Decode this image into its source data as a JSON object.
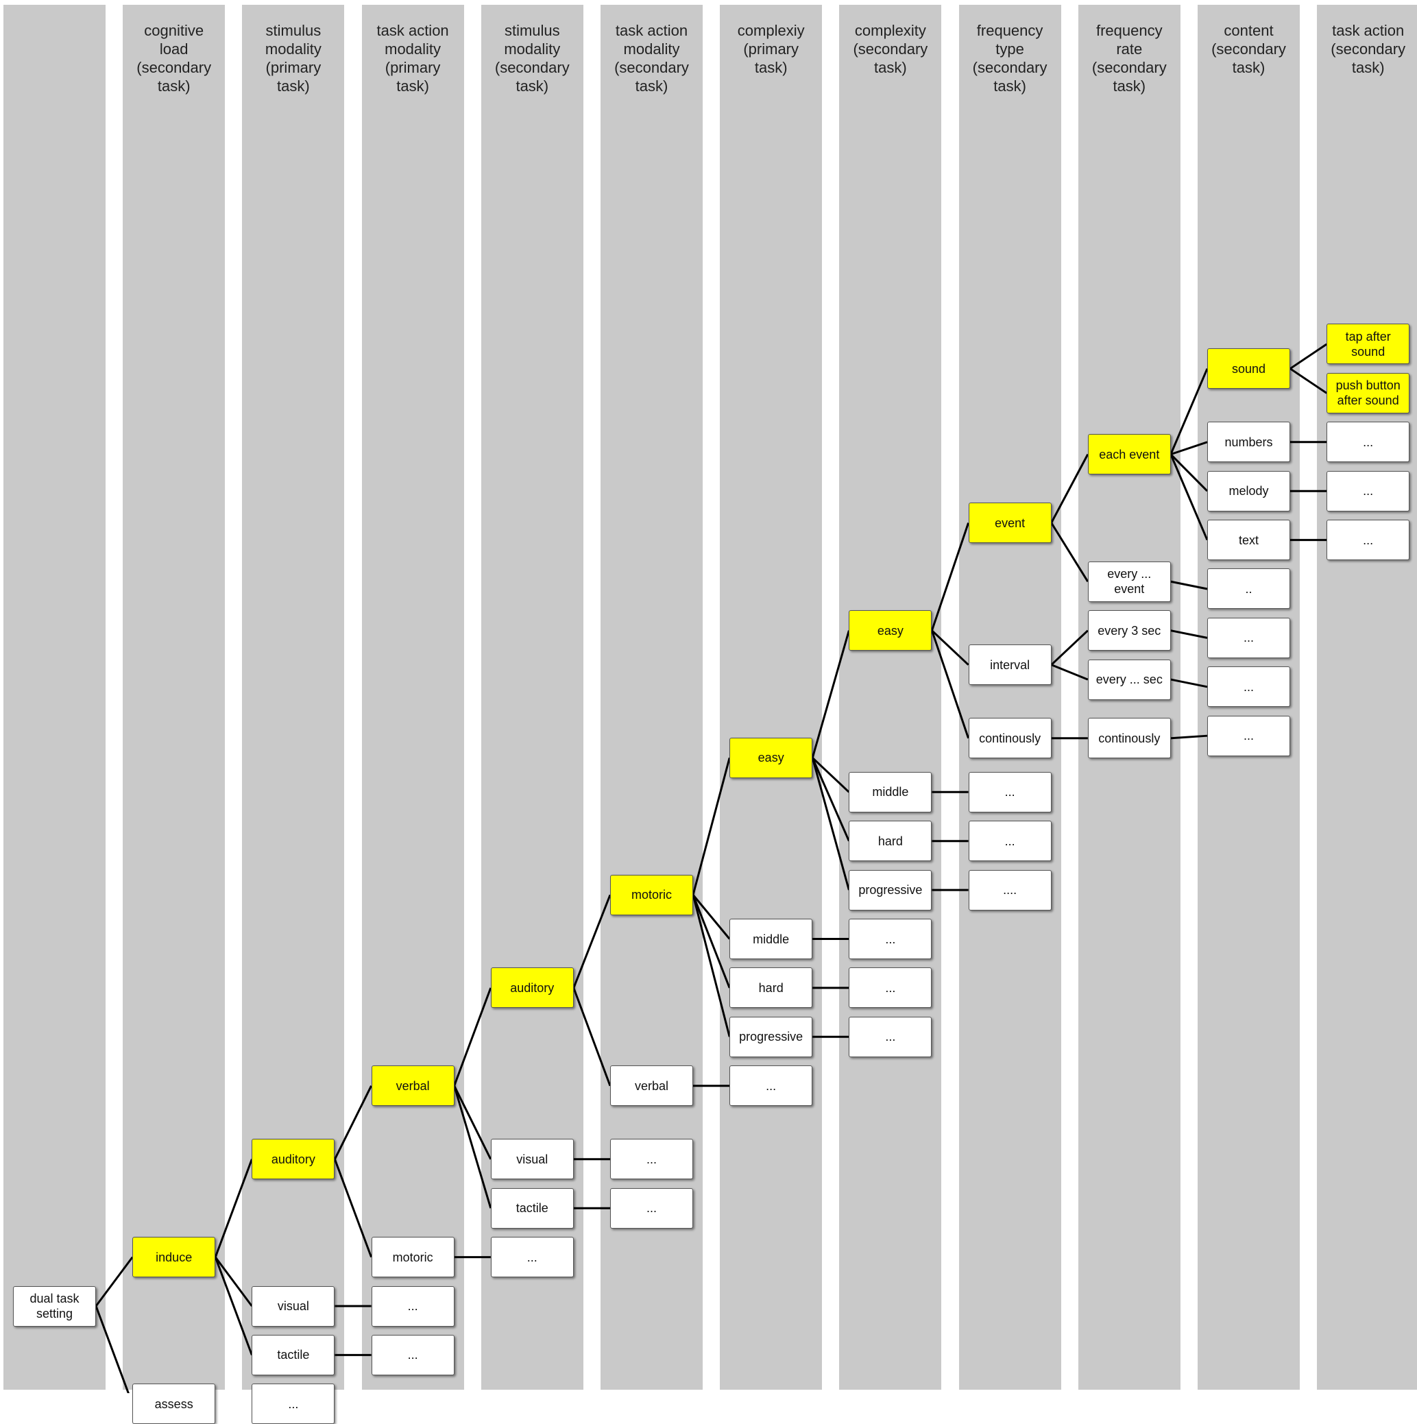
{
  "columns": [
    {
      "id": "c0",
      "label": ""
    },
    {
      "id": "c1",
      "label": "cognitive\nload\n(secondary\ntask)"
    },
    {
      "id": "c2",
      "label": "stimulus\nmodality\n(primary\ntask)"
    },
    {
      "id": "c3",
      "label": "task action\nmodality\n(primary\ntask)"
    },
    {
      "id": "c4",
      "label": "stimulus\nmodality\n(secondary\ntask)"
    },
    {
      "id": "c5",
      "label": "task action\nmodality\n(secondary\ntask)"
    },
    {
      "id": "c6",
      "label": "complexiy\n(primary\ntask)"
    },
    {
      "id": "c7",
      "label": "complexity\n(secondary\ntask)"
    },
    {
      "id": "c8",
      "label": "frequency\ntype\n(secondary\ntask)"
    },
    {
      "id": "c9",
      "label": "frequency\nrate\n(secondary\ntask)"
    },
    {
      "id": "c10",
      "label": "content\n(secondary\ntask)"
    },
    {
      "id": "c11",
      "label": "task action\n(secondary\ntask)"
    }
  ],
  "nodes": [
    {
      "id": "root",
      "col": 0,
      "row": 0,
      "label": "dual task\nsetting",
      "highlight": false
    },
    {
      "id": "induce",
      "col": 1,
      "row": 1,
      "label": "induce",
      "highlight": true
    },
    {
      "id": "assess",
      "col": 1,
      "row": -2,
      "label": "assess",
      "highlight": false
    },
    {
      "id": "aud1",
      "col": 2,
      "row": 3,
      "label": "auditory",
      "highlight": true
    },
    {
      "id": "vis1",
      "col": 2,
      "row": 0,
      "label": "visual",
      "highlight": false
    },
    {
      "id": "tac1",
      "col": 2,
      "row": -1,
      "label": "tactile",
      "highlight": false
    },
    {
      "id": "dots2a",
      "col": 2,
      "row": -2,
      "label": "...",
      "highlight": false
    },
    {
      "id": "verbal1",
      "col": 3,
      "row": 4.5,
      "label": "verbal",
      "highlight": true
    },
    {
      "id": "motoric1",
      "col": 3,
      "row": 1,
      "label": "motoric",
      "highlight": false
    },
    {
      "id": "dots3a",
      "col": 3,
      "row": 0,
      "label": "...",
      "highlight": false
    },
    {
      "id": "dots3b",
      "col": 3,
      "row": -1,
      "label": "...",
      "highlight": false
    },
    {
      "id": "aud2",
      "col": 4,
      "row": 6.5,
      "label": "auditory",
      "highlight": true
    },
    {
      "id": "vis2",
      "col": 4,
      "row": 3,
      "label": "visual",
      "highlight": false
    },
    {
      "id": "tac2",
      "col": 4,
      "row": 2,
      "label": "tactile",
      "highlight": false
    },
    {
      "id": "dots4a",
      "col": 4,
      "row": 1,
      "label": "...",
      "highlight": false
    },
    {
      "id": "motoric2",
      "col": 5,
      "row": 8.4,
      "label": "motoric",
      "highlight": true
    },
    {
      "id": "verbal2",
      "col": 5,
      "row": 4.5,
      "label": "verbal",
      "highlight": false
    },
    {
      "id": "dots5a",
      "col": 5,
      "row": 3,
      "label": "...",
      "highlight": false
    },
    {
      "id": "dots5b",
      "col": 5,
      "row": 2,
      "label": "...",
      "highlight": false
    },
    {
      "id": "easy1",
      "col": 6,
      "row": 11.2,
      "label": "easy",
      "highlight": true
    },
    {
      "id": "middle1",
      "col": 6,
      "row": 7.5,
      "label": "middle",
      "highlight": false
    },
    {
      "id": "hard1",
      "col": 6,
      "row": 6.5,
      "label": "hard",
      "highlight": false
    },
    {
      "id": "prog1",
      "col": 6,
      "row": 5.5,
      "label": "progressive",
      "highlight": false
    },
    {
      "id": "dots6a",
      "col": 6,
      "row": 4.5,
      "label": "...",
      "highlight": false
    },
    {
      "id": "easy2",
      "col": 7,
      "row": 13.8,
      "label": "easy",
      "highlight": true
    },
    {
      "id": "middle2",
      "col": 7,
      "row": 10.5,
      "label": "middle",
      "highlight": false
    },
    {
      "id": "hard2",
      "col": 7,
      "row": 9.5,
      "label": "hard",
      "highlight": false
    },
    {
      "id": "prog2",
      "col": 7,
      "row": 8.5,
      "label": "progressive",
      "highlight": false
    },
    {
      "id": "dots7a",
      "col": 7,
      "row": 7.5,
      "label": "...",
      "highlight": false
    },
    {
      "id": "dots7b",
      "col": 7,
      "row": 6.5,
      "label": "...",
      "highlight": false
    },
    {
      "id": "dots7c",
      "col": 7,
      "row": 5.5,
      "label": "...",
      "highlight": false
    },
    {
      "id": "event",
      "col": 8,
      "row": 16,
      "label": "event",
      "highlight": true
    },
    {
      "id": "interval",
      "col": 8,
      "row": 13.1,
      "label": "interval",
      "highlight": false
    },
    {
      "id": "cont1",
      "col": 8,
      "row": 11.6,
      "label": "continously",
      "highlight": false
    },
    {
      "id": "dots8a",
      "col": 8,
      "row": 10.5,
      "label": "...",
      "highlight": false
    },
    {
      "id": "dots8b",
      "col": 8,
      "row": 9.5,
      "label": "...",
      "highlight": false
    },
    {
      "id": "dots8c",
      "col": 8,
      "row": 8.5,
      "label": "....",
      "highlight": false
    },
    {
      "id": "eachevent",
      "col": 9,
      "row": 17.4,
      "label": "each event",
      "highlight": true
    },
    {
      "id": "everyevent",
      "col": 9,
      "row": 14.8,
      "label": "every ...\nevent",
      "highlight": false
    },
    {
      "id": "every3",
      "col": 9,
      "row": 13.8,
      "label": "every 3 sec",
      "highlight": false
    },
    {
      "id": "everysec",
      "col": 9,
      "row": 12.8,
      "label": "every ... sec",
      "highlight": false
    },
    {
      "id": "cont2",
      "col": 9,
      "row": 11.6,
      "label": "continously",
      "highlight": false
    },
    {
      "id": "sound",
      "col": 10,
      "row": 19.15,
      "label": "sound",
      "highlight": true
    },
    {
      "id": "numbers",
      "col": 10,
      "row": 17.65,
      "label": "numbers",
      "highlight": false
    },
    {
      "id": "melody",
      "col": 10,
      "row": 16.65,
      "label": "melody",
      "highlight": false
    },
    {
      "id": "text",
      "col": 10,
      "row": 15.65,
      "label": "text",
      "highlight": false
    },
    {
      "id": "dots10a",
      "col": 10,
      "row": 14.65,
      "label": "..",
      "highlight": false
    },
    {
      "id": "dots10b",
      "col": 10,
      "row": 13.65,
      "label": "...",
      "highlight": false
    },
    {
      "id": "dots10c",
      "col": 10,
      "row": 12.65,
      "label": "...",
      "highlight": false
    },
    {
      "id": "dots10d",
      "col": 10,
      "row": 11.65,
      "label": "...",
      "highlight": false
    },
    {
      "id": "tap",
      "col": 11,
      "row": 19.65,
      "label": "tap after\nsound",
      "highlight": true
    },
    {
      "id": "push",
      "col": 11,
      "row": 18.65,
      "label": "push button\nafter sound",
      "highlight": true
    },
    {
      "id": "dots11a",
      "col": 11,
      "row": 17.65,
      "label": "...",
      "highlight": false
    },
    {
      "id": "dots11b",
      "col": 11,
      "row": 16.65,
      "label": "...",
      "highlight": false
    },
    {
      "id": "dots11c",
      "col": 11,
      "row": 15.65,
      "label": "...",
      "highlight": false
    }
  ],
  "edges": [
    [
      "root",
      "induce"
    ],
    [
      "root",
      "assess"
    ],
    [
      "induce",
      "aud1"
    ],
    [
      "induce",
      "vis1"
    ],
    [
      "induce",
      "tac1"
    ],
    [
      "assess",
      "dots2a"
    ],
    [
      "aud1",
      "verbal1"
    ],
    [
      "aud1",
      "motoric1"
    ],
    [
      "vis1",
      "dots3a"
    ],
    [
      "tac1",
      "dots3b"
    ],
    [
      "verbal1",
      "aud2"
    ],
    [
      "verbal1",
      "vis2"
    ],
    [
      "verbal1",
      "tac2"
    ],
    [
      "motoric1",
      "dots4a"
    ],
    [
      "aud2",
      "motoric2"
    ],
    [
      "aud2",
      "verbal2"
    ],
    [
      "vis2",
      "dots5a"
    ],
    [
      "tac2",
      "dots5b"
    ],
    [
      "motoric2",
      "easy1"
    ],
    [
      "motoric2",
      "middle1"
    ],
    [
      "motoric2",
      "hard1"
    ],
    [
      "motoric2",
      "prog1"
    ],
    [
      "verbal2",
      "dots6a"
    ],
    [
      "easy1",
      "easy2"
    ],
    [
      "easy1",
      "middle2"
    ],
    [
      "easy1",
      "hard2"
    ],
    [
      "easy1",
      "prog2"
    ],
    [
      "middle1",
      "dots7a"
    ],
    [
      "hard1",
      "dots7b"
    ],
    [
      "prog1",
      "dots7c"
    ],
    [
      "easy2",
      "event"
    ],
    [
      "easy2",
      "interval"
    ],
    [
      "easy2",
      "cont1"
    ],
    [
      "middle2",
      "dots8a"
    ],
    [
      "hard2",
      "dots8b"
    ],
    [
      "prog2",
      "dots8c"
    ],
    [
      "event",
      "eachevent"
    ],
    [
      "event",
      "everyevent"
    ],
    [
      "interval",
      "every3"
    ],
    [
      "interval",
      "everysec"
    ],
    [
      "cont1",
      "cont2"
    ],
    [
      "eachevent",
      "sound"
    ],
    [
      "eachevent",
      "numbers"
    ],
    [
      "eachevent",
      "melody"
    ],
    [
      "eachevent",
      "text"
    ],
    [
      "everyevent",
      "dots10a"
    ],
    [
      "every3",
      "dots10b"
    ],
    [
      "everysec",
      "dots10c"
    ],
    [
      "cont2",
      "dots10d"
    ],
    [
      "sound",
      "tap"
    ],
    [
      "sound",
      "push"
    ],
    [
      "numbers",
      "dots11a"
    ],
    [
      "melody",
      "dots11b"
    ],
    [
      "text",
      "dots11c"
    ]
  ]
}
